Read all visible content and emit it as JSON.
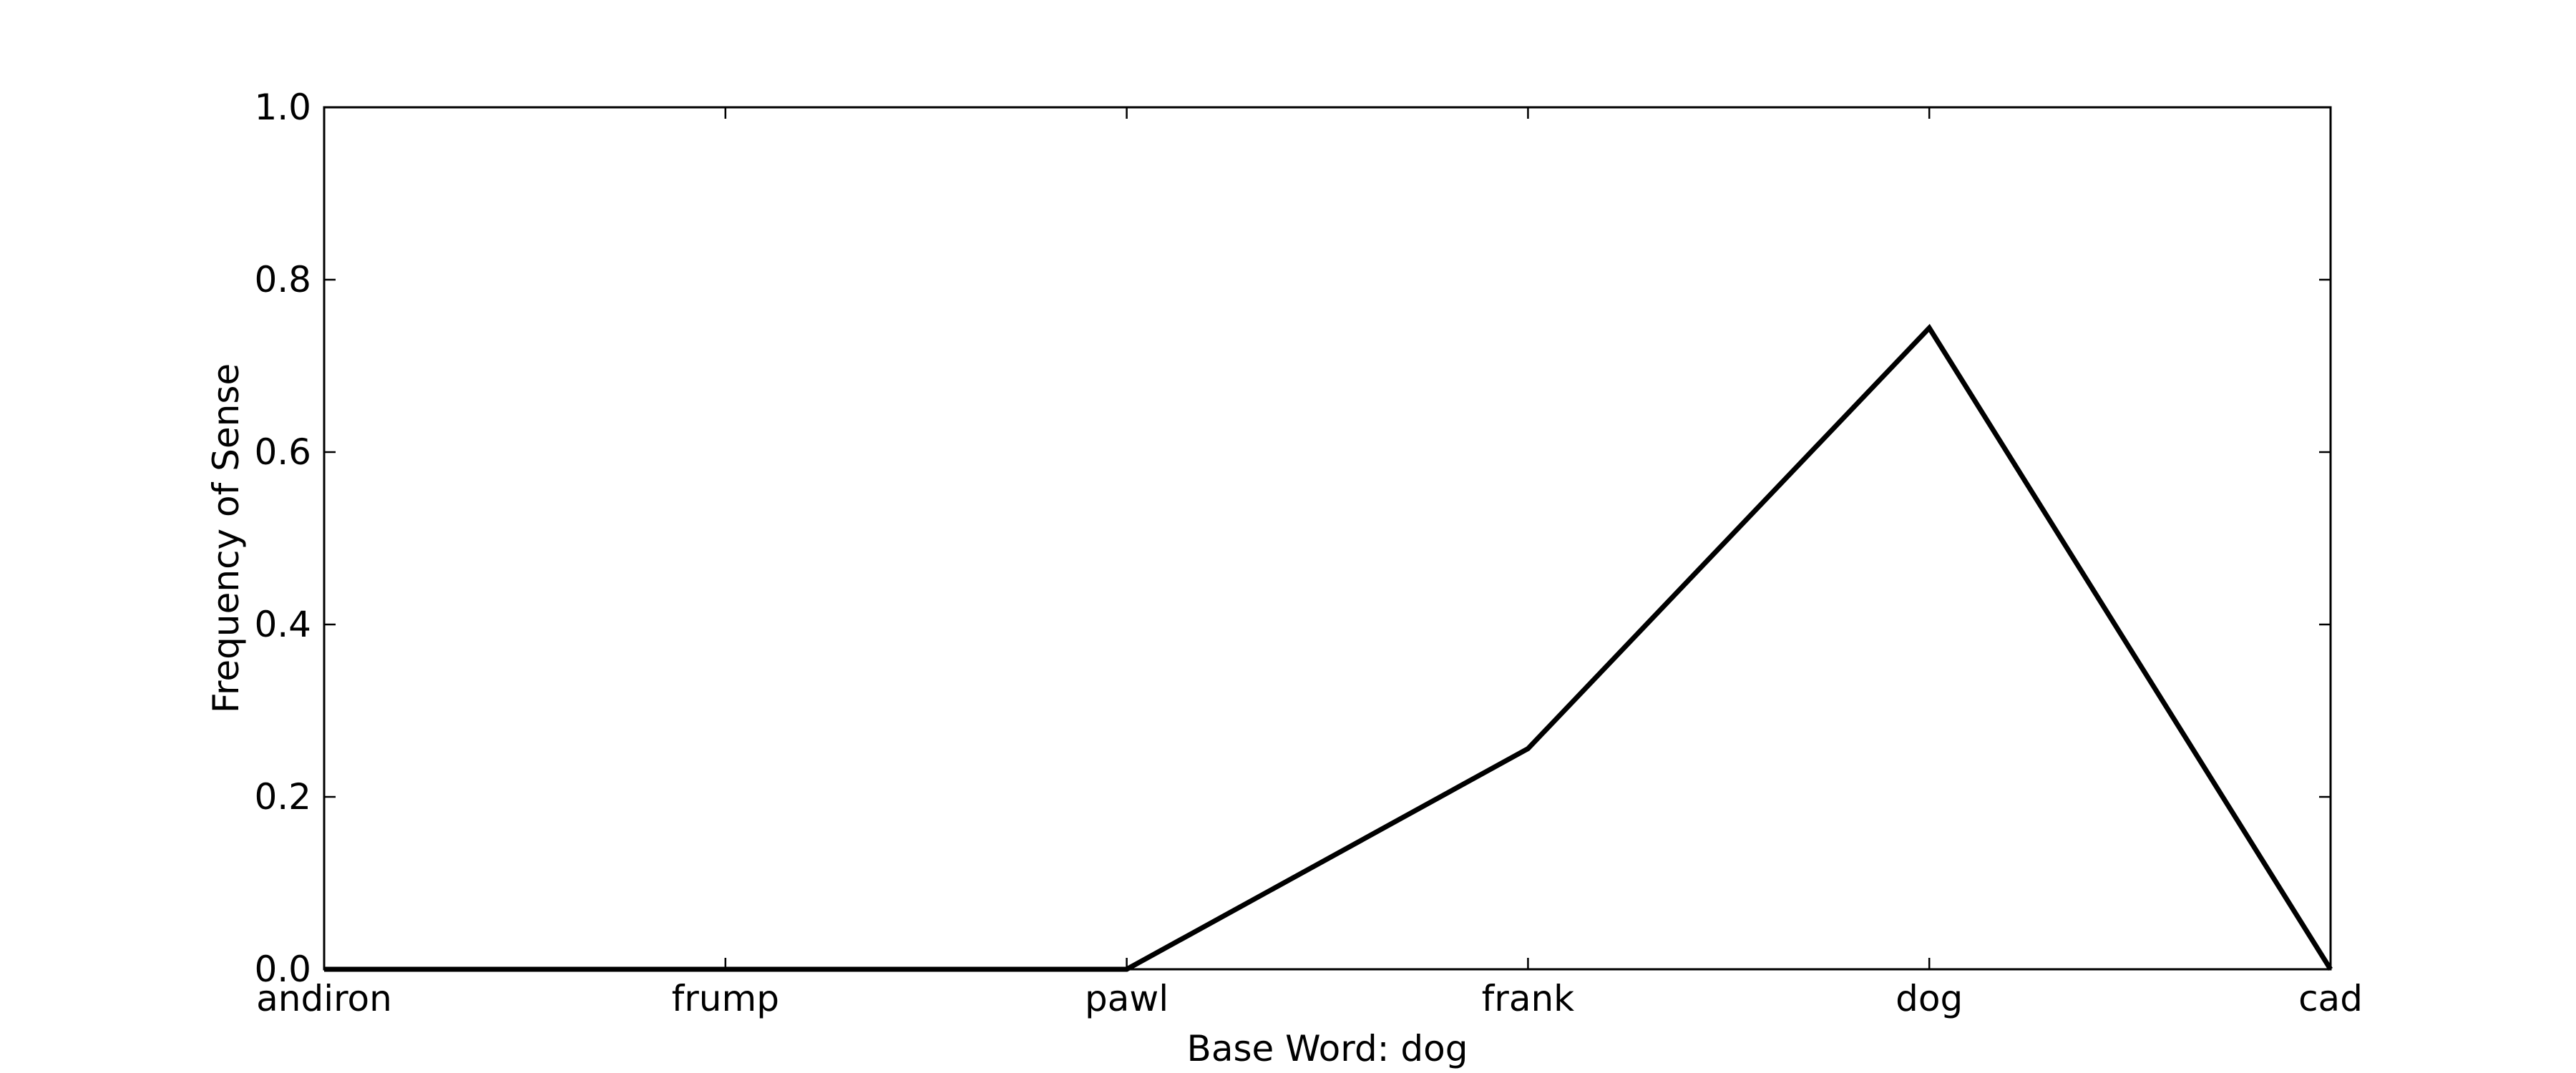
{
  "chart_data": {
    "type": "line",
    "title": "",
    "xlabel": "Base Word: dog",
    "ylabel": "Frequency of Sense",
    "categories": [
      "andiron",
      "frump",
      "pawl",
      "frank",
      "dog",
      "cad"
    ],
    "series": [
      {
        "values": [
          0.0,
          0.0,
          0.0,
          0.256,
          0.744,
          0.0
        ]
      }
    ],
    "ylim": [
      0.0,
      1.0
    ],
    "yticks": [
      "0.0",
      "0.2",
      "0.4",
      "0.6",
      "0.8",
      "1.0"
    ],
    "grid": false,
    "line_color": "#000000"
  }
}
